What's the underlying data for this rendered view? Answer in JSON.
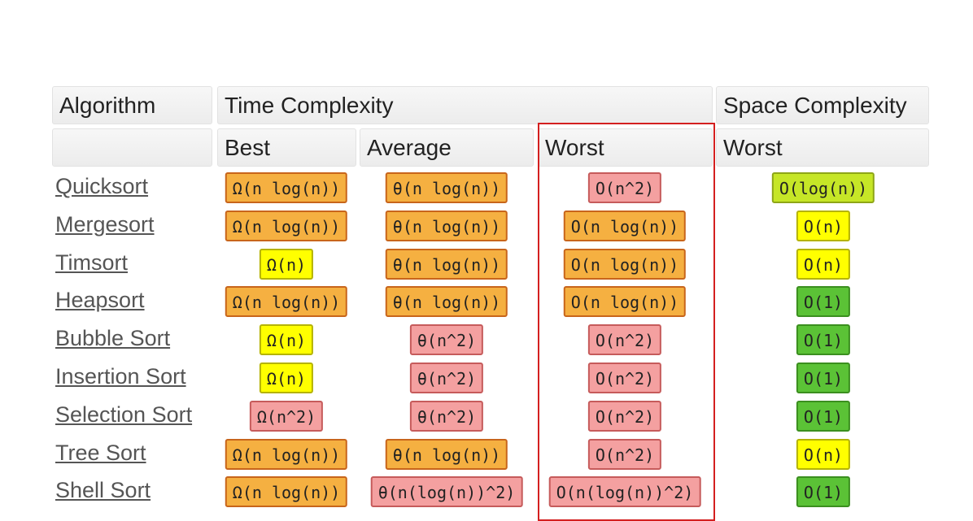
{
  "headers": {
    "algorithm": "Algorithm",
    "time_complexity": "Time Complexity",
    "space_complexity": "Space Complexity",
    "best": "Best",
    "average": "Average",
    "worst": "Worst",
    "space_worst": "Worst"
  },
  "colors": {
    "orange": "#f5b041",
    "yellow": "#ffff00",
    "red": "#f4a0a0",
    "yellow_green": "#c6e627",
    "green": "#5bc236",
    "worst_highlight": "#d41f1f"
  },
  "rows": [
    {
      "name": "Quicksort",
      "best": {
        "text": "Ω(n log(n))",
        "color": "orange"
      },
      "average": {
        "text": "θ(n log(n))",
        "color": "orange"
      },
      "worst": {
        "text": "O(n^2)",
        "color": "red"
      },
      "space": {
        "text": "O(log(n))",
        "color": "yellow_green"
      }
    },
    {
      "name": "Mergesort",
      "best": {
        "text": "Ω(n log(n))",
        "color": "orange"
      },
      "average": {
        "text": "θ(n log(n))",
        "color": "orange"
      },
      "worst": {
        "text": "O(n log(n))",
        "color": "orange"
      },
      "space": {
        "text": "O(n)",
        "color": "yellow"
      }
    },
    {
      "name": "Timsort",
      "best": {
        "text": "Ω(n)",
        "color": "yellow"
      },
      "average": {
        "text": "θ(n log(n))",
        "color": "orange"
      },
      "worst": {
        "text": "O(n log(n))",
        "color": "orange"
      },
      "space": {
        "text": "O(n)",
        "color": "yellow"
      }
    },
    {
      "name": "Heapsort",
      "best": {
        "text": "Ω(n log(n))",
        "color": "orange"
      },
      "average": {
        "text": "θ(n log(n))",
        "color": "orange"
      },
      "worst": {
        "text": "O(n log(n))",
        "color": "orange"
      },
      "space": {
        "text": "O(1)",
        "color": "green"
      }
    },
    {
      "name": "Bubble Sort",
      "best": {
        "text": "Ω(n)",
        "color": "yellow"
      },
      "average": {
        "text": "θ(n^2)",
        "color": "red"
      },
      "worst": {
        "text": "O(n^2)",
        "color": "red"
      },
      "space": {
        "text": "O(1)",
        "color": "green"
      }
    },
    {
      "name": "Insertion Sort",
      "best": {
        "text": "Ω(n)",
        "color": "yellow"
      },
      "average": {
        "text": "θ(n^2)",
        "color": "red"
      },
      "worst": {
        "text": "O(n^2)",
        "color": "red"
      },
      "space": {
        "text": "O(1)",
        "color": "green"
      }
    },
    {
      "name": "Selection Sort",
      "best": {
        "text": "Ω(n^2)",
        "color": "red"
      },
      "average": {
        "text": "θ(n^2)",
        "color": "red"
      },
      "worst": {
        "text": "O(n^2)",
        "color": "red"
      },
      "space": {
        "text": "O(1)",
        "color": "green"
      }
    },
    {
      "name": "Tree Sort",
      "best": {
        "text": "Ω(n log(n))",
        "color": "orange"
      },
      "average": {
        "text": "θ(n log(n))",
        "color": "orange"
      },
      "worst": {
        "text": "O(n^2)",
        "color": "red"
      },
      "space": {
        "text": "O(n)",
        "color": "yellow"
      }
    },
    {
      "name": "Shell Sort",
      "best": {
        "text": "Ω(n log(n))",
        "color": "orange"
      },
      "average": {
        "text": "θ(n(log(n))^2)",
        "color": "red"
      },
      "worst": {
        "text": "O(n(log(n))^2)",
        "color": "red"
      },
      "space": {
        "text": "O(1)",
        "color": "green"
      }
    }
  ]
}
